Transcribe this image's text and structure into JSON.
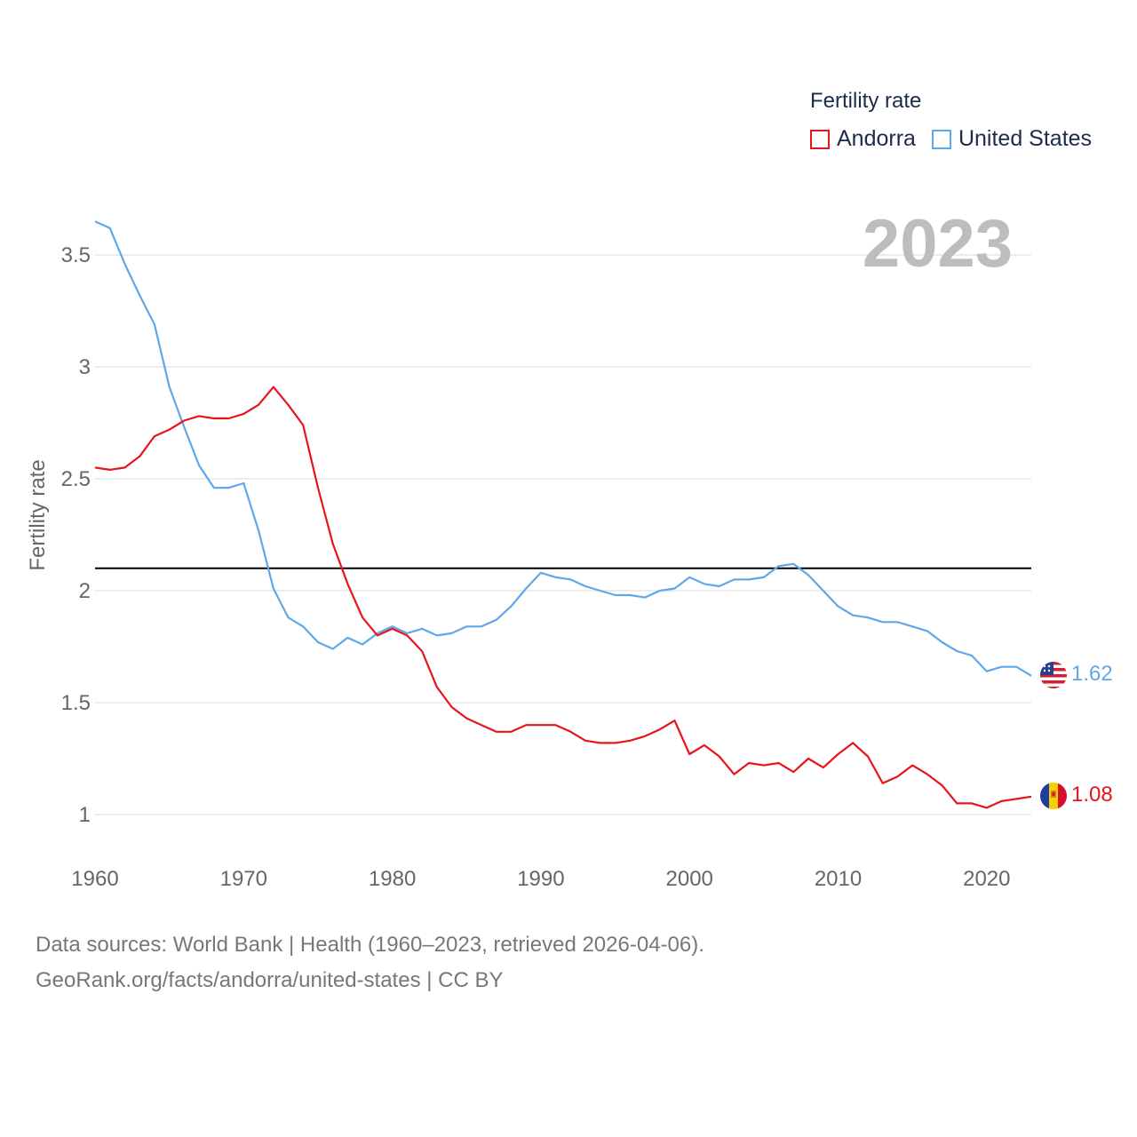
{
  "chart_data": {
    "type": "line",
    "legend_title": "Fertility rate",
    "ylabel": "Fertility rate",
    "year_label": "2023",
    "xlim": [
      1960,
      2023
    ],
    "ylim": [
      0.9,
      3.75
    ],
    "x_ticks": [
      1960,
      1970,
      1980,
      1990,
      2000,
      2010,
      2020
    ],
    "y_ticks": [
      1,
      1.5,
      2,
      2.5,
      3,
      3.5
    ],
    "y_tick_labels": [
      "1",
      "1.5",
      "2",
      "2.5",
      "3",
      "3.5"
    ],
    "grid": true,
    "reference_line": 2.1,
    "x": [
      1960,
      1961,
      1962,
      1963,
      1964,
      1965,
      1966,
      1967,
      1968,
      1969,
      1970,
      1971,
      1972,
      1973,
      1974,
      1975,
      1976,
      1977,
      1978,
      1979,
      1980,
      1981,
      1982,
      1983,
      1984,
      1985,
      1986,
      1987,
      1988,
      1989,
      1990,
      1991,
      1992,
      1993,
      1994,
      1995,
      1996,
      1997,
      1998,
      1999,
      2000,
      2001,
      2002,
      2003,
      2004,
      2005,
      2006,
      2007,
      2008,
      2009,
      2010,
      2011,
      2012,
      2013,
      2014,
      2015,
      2016,
      2017,
      2018,
      2019,
      2020,
      2021,
      2022,
      2023
    ],
    "series": [
      {
        "name": "Andorra",
        "color": "#e8141b",
        "end_label": "1.08",
        "values": [
          2.55,
          2.54,
          2.55,
          2.6,
          2.69,
          2.72,
          2.76,
          2.78,
          2.77,
          2.77,
          2.79,
          2.83,
          2.91,
          2.83,
          2.74,
          2.46,
          2.21,
          2.03,
          1.88,
          1.8,
          1.83,
          1.8,
          1.73,
          1.57,
          1.48,
          1.43,
          1.4,
          1.37,
          1.37,
          1.4,
          1.4,
          1.4,
          1.37,
          1.33,
          1.32,
          1.32,
          1.33,
          1.35,
          1.38,
          1.42,
          1.27,
          1.31,
          1.26,
          1.18,
          1.23,
          1.22,
          1.23,
          1.19,
          1.25,
          1.21,
          1.27,
          1.32,
          1.26,
          1.14,
          1.17,
          1.22,
          1.18,
          1.13,
          1.05,
          1.05,
          1.03,
          1.06,
          1.07,
          1.08
        ]
      },
      {
        "name": "United States",
        "color": "#5ea8e8",
        "end_label": "1.62",
        "values": [
          3.65,
          3.62,
          3.46,
          3.32,
          3.19,
          2.91,
          2.73,
          2.56,
          2.46,
          2.46,
          2.48,
          2.27,
          2.01,
          1.88,
          1.84,
          1.77,
          1.74,
          1.79,
          1.76,
          1.81,
          1.84,
          1.81,
          1.83,
          1.8,
          1.81,
          1.84,
          1.84,
          1.87,
          1.93,
          2.01,
          2.08,
          2.06,
          2.05,
          2.02,
          2.0,
          1.98,
          1.98,
          1.97,
          2.0,
          2.01,
          2.06,
          2.03,
          2.02,
          2.05,
          2.05,
          2.06,
          2.11,
          2.12,
          2.07,
          2.0,
          1.93,
          1.89,
          1.88,
          1.86,
          1.86,
          1.84,
          1.82,
          1.77,
          1.73,
          1.71,
          1.64,
          1.66,
          1.66,
          1.62
        ]
      }
    ]
  },
  "footer": {
    "line1": "Data sources: World Bank | Health (1960–2023, retrieved 2026-04-06).",
    "line2": "GeoRank.org/facts/andorra/united-states | CC BY"
  },
  "colors": {
    "grid": "#e6e6e6",
    "axis_text": "#666666",
    "year_watermark": "#bdbdbd",
    "reference": "#000000"
  },
  "icons": [
    "flag-us-icon",
    "flag-andorra-icon"
  ]
}
